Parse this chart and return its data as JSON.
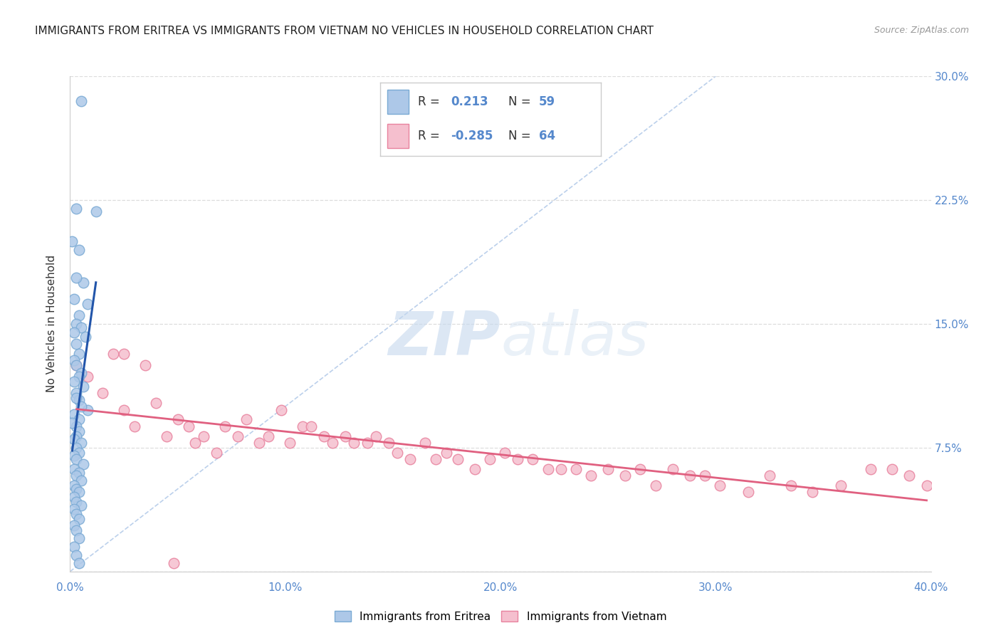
{
  "title": "IMMIGRANTS FROM ERITREA VS IMMIGRANTS FROM VIETNAM NO VEHICLES IN HOUSEHOLD CORRELATION CHART",
  "source": "Source: ZipAtlas.com",
  "ylabel": "No Vehicles in Household",
  "xmin": 0.0,
  "xmax": 0.4,
  "ymin": 0.0,
  "ymax": 0.3,
  "xticks": [
    0.0,
    0.1,
    0.2,
    0.3,
    0.4
  ],
  "yticks": [
    0.0,
    0.075,
    0.15,
    0.225,
    0.3
  ],
  "xtick_labels": [
    "0.0%",
    "10.0%",
    "20.0%",
    "30.0%",
    "40.0%"
  ],
  "ytick_labels": [
    "",
    "7.5%",
    "15.0%",
    "22.5%",
    "30.0%"
  ],
  "legend_labels": [
    "Immigrants from Eritrea",
    "Immigrants from Vietnam"
  ],
  "eritrea_color": "#adc8e8",
  "eritrea_edge": "#7aaad4",
  "vietnam_color": "#f5bfce",
  "vietnam_edge": "#e8829e",
  "eritrea_line_color": "#2255aa",
  "vietnam_line_color": "#e06080",
  "diagonal_color": "#b0c8e8",
  "R_eritrea": "0.213",
  "N_eritrea": "59",
  "R_vietnam": "-0.285",
  "N_vietnam": "64",
  "watermark_zip": "ZIP",
  "watermark_atlas": "atlas",
  "background_color": "#ffffff",
  "grid_color": "#dddddd",
  "eritrea_x": [
    0.005,
    0.012,
    0.003,
    0.004,
    0.001,
    0.006,
    0.003,
    0.008,
    0.002,
    0.004,
    0.003,
    0.005,
    0.002,
    0.007,
    0.003,
    0.004,
    0.002,
    0.003,
    0.005,
    0.004,
    0.002,
    0.006,
    0.003,
    0.004,
    0.008,
    0.003,
    0.005,
    0.002,
    0.004,
    0.003,
    0.001,
    0.004,
    0.003,
    0.002,
    0.005,
    0.003,
    0.004,
    0.002,
    0.003,
    0.006,
    0.002,
    0.004,
    0.003,
    0.005,
    0.002,
    0.003,
    0.004,
    0.002,
    0.003,
    0.005,
    0.002,
    0.003,
    0.004,
    0.002,
    0.003,
    0.004,
    0.002,
    0.003,
    0.004
  ],
  "eritrea_y": [
    0.285,
    0.218,
    0.22,
    0.195,
    0.2,
    0.175,
    0.178,
    0.162,
    0.165,
    0.155,
    0.15,
    0.148,
    0.145,
    0.142,
    0.138,
    0.132,
    0.128,
    0.125,
    0.12,
    0.118,
    0.115,
    0.112,
    0.108,
    0.104,
    0.098,
    0.105,
    0.1,
    0.095,
    0.092,
    0.088,
    0.09,
    0.085,
    0.082,
    0.08,
    0.078,
    0.075,
    0.072,
    0.07,
    0.068,
    0.065,
    0.062,
    0.06,
    0.058,
    0.055,
    0.052,
    0.05,
    0.048,
    0.045,
    0.042,
    0.04,
    0.038,
    0.035,
    0.032,
    0.028,
    0.025,
    0.02,
    0.015,
    0.01,
    0.005
  ],
  "vietnam_x": [
    0.003,
    0.008,
    0.015,
    0.02,
    0.025,
    0.03,
    0.035,
    0.04,
    0.045,
    0.05,
    0.055,
    0.058,
    0.062,
    0.068,
    0.072,
    0.078,
    0.082,
    0.088,
    0.092,
    0.098,
    0.102,
    0.108,
    0.112,
    0.118,
    0.122,
    0.128,
    0.132,
    0.138,
    0.142,
    0.148,
    0.152,
    0.158,
    0.165,
    0.17,
    0.175,
    0.18,
    0.188,
    0.195,
    0.202,
    0.208,
    0.215,
    0.222,
    0.228,
    0.235,
    0.242,
    0.25,
    0.258,
    0.265,
    0.272,
    0.28,
    0.288,
    0.295,
    0.302,
    0.315,
    0.325,
    0.335,
    0.345,
    0.358,
    0.372,
    0.382,
    0.39,
    0.398,
    0.025,
    0.048
  ],
  "vietnam_y": [
    0.125,
    0.118,
    0.108,
    0.132,
    0.098,
    0.088,
    0.125,
    0.102,
    0.082,
    0.092,
    0.088,
    0.078,
    0.082,
    0.072,
    0.088,
    0.082,
    0.092,
    0.078,
    0.082,
    0.098,
    0.078,
    0.088,
    0.088,
    0.082,
    0.078,
    0.082,
    0.078,
    0.078,
    0.082,
    0.078,
    0.072,
    0.068,
    0.078,
    0.068,
    0.072,
    0.068,
    0.062,
    0.068,
    0.072,
    0.068,
    0.068,
    0.062,
    0.062,
    0.062,
    0.058,
    0.062,
    0.058,
    0.062,
    0.052,
    0.062,
    0.058,
    0.058,
    0.052,
    0.048,
    0.058,
    0.052,
    0.048,
    0.052,
    0.062,
    0.062,
    0.058,
    0.052,
    0.132,
    0.005
  ]
}
